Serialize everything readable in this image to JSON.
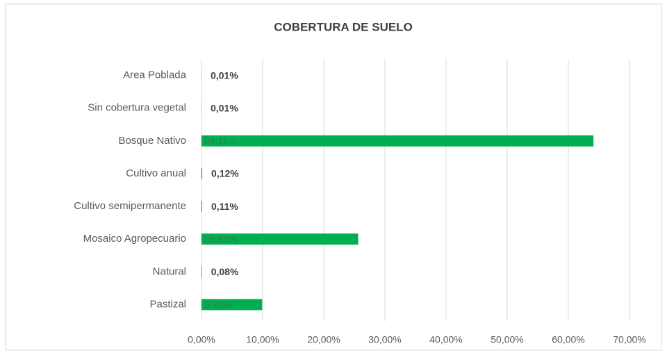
{
  "chart_data": {
    "type": "bar",
    "orientation": "horizontal",
    "title": "COBERTURA DE SUELO",
    "categories": [
      "Area Poblada",
      "Sin cobertura vegetal",
      "Bosque Nativo",
      "Cultivo anual",
      "Cultivo semipermanente",
      "Mosaico Agropecuario",
      "Natural",
      "Pastizal"
    ],
    "values": [
      0.01,
      0.01,
      64.11,
      0.12,
      0.11,
      25.63,
      0.08,
      9.92
    ],
    "value_labels": [
      "0,01%",
      "0,01%",
      "64,11%",
      "0,12%",
      "0,11%",
      "25,63%",
      "0,08%",
      "9,92%"
    ],
    "color": "#00b050",
    "xlim": [
      0,
      70
    ],
    "xticks": [
      {
        "value": 0,
        "label": "0,00%"
      },
      {
        "value": 10,
        "label": "10,00%"
      },
      {
        "value": 20,
        "label": "20,00%"
      },
      {
        "value": 30,
        "label": "30,00%"
      },
      {
        "value": 40,
        "label": "40,00%"
      },
      {
        "value": 50,
        "label": "50,00%"
      },
      {
        "value": 60,
        "label": "60,00%"
      },
      {
        "value": 70,
        "label": "70,00%"
      }
    ],
    "grid": true
  }
}
